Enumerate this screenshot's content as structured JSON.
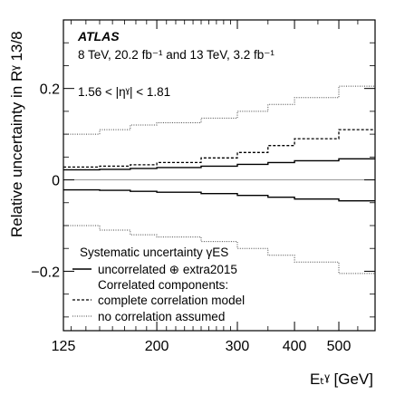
{
  "chart_data": {
    "type": "line",
    "title": "",
    "experiment": "ATLAS",
    "energy_label": "8 TeV, 20.2 fb⁻¹ and 13 TeV, 3.2 fb⁻¹",
    "eta_label": "1.56 < |ηˠ| < 1.81",
    "xlabel": "Eₜˠ [GeV]",
    "ylabel": "Relative uncertainty in Rˠ 13/8",
    "xscale": "log",
    "xlim": [
      125,
      600
    ],
    "ylim": [
      -0.33,
      0.35
    ],
    "xticks": [
      125,
      200,
      300,
      400,
      500
    ],
    "xtick_labels": [
      "125",
      "200",
      "300",
      "400",
      "500"
    ],
    "yticks": [
      -0.2,
      0,
      0.2
    ],
    "ytick_labels": [
      "−0.2",
      "0",
      "0.2"
    ],
    "bin_edges": [
      125,
      150,
      175,
      200,
      250,
      300,
      350,
      400,
      500,
      600
    ],
    "legend": {
      "title": "Systematic uncertainty γES",
      "subheading": "Correlated components:",
      "placement": "bottom-left"
    },
    "series": [
      {
        "name": "uncorrelated ⊕ extra2015",
        "style": "solid",
        "values": [
          0.022,
          0.023,
          0.025,
          0.027,
          0.03,
          0.034,
          0.038,
          0.042,
          0.046
        ],
        "symmetric": true
      },
      {
        "name": "complete correlation model",
        "style": "dashed",
        "values": [
          0.028,
          0.03,
          0.033,
          0.038,
          0.048,
          0.06,
          0.075,
          0.09,
          0.11
        ],
        "symmetric": false,
        "lower_equals": "uncorrelated ⊕ extra2015"
      },
      {
        "name": "no correlation assumed",
        "style": "dotted",
        "values": [
          0.1,
          0.11,
          0.12,
          0.125,
          0.135,
          0.15,
          0.165,
          0.18,
          0.205
        ],
        "symmetric": true
      }
    ]
  }
}
